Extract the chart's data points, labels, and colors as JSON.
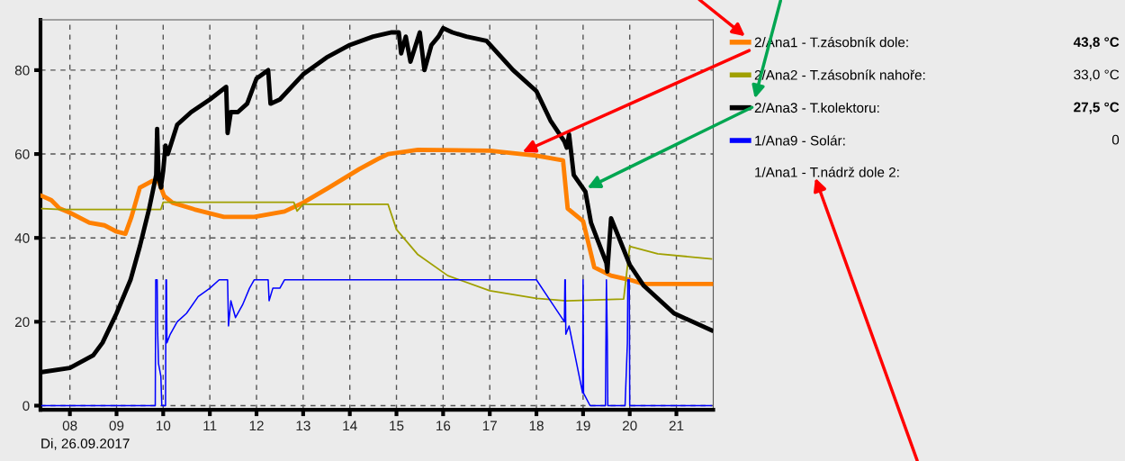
{
  "chart_data": {
    "type": "line",
    "xlabel": "Di, 26.09.2017",
    "xlim": [
      7.37,
      21.79
    ],
    "ylim": [
      -1,
      92
    ],
    "xticks": [
      {
        "value": 8,
        "label": "08"
      },
      {
        "value": 9,
        "label": "09"
      },
      10,
      11,
      12,
      13,
      14,
      15,
      16,
      17,
      18,
      19,
      20,
      21
    ],
    "yticks": [
      0,
      20,
      40,
      60,
      80
    ],
    "grid": true,
    "legend": "right",
    "marker": "none",
    "line_style": "solid",
    "annotations": [
      "1/Ana1 - T.nádrž dole 2:",
      "43,8 °C",
      "33,0 °C",
      "27,5 °C",
      "0"
    ],
    "series": [
      {
        "name": "2/Ana1 - T.zásobník dole:",
        "color": "#ff8000",
        "x": [
          7.4,
          7.6,
          7.78,
          8.0,
          8.42,
          8.74,
          9.0,
          9.19,
          9.32,
          9.5,
          9.77,
          9.9,
          10.02,
          10.2,
          10.67,
          11.3,
          11.95,
          12.6,
          13.0,
          13.55,
          14.2,
          14.6,
          14.82,
          15.46,
          17.0,
          18.0,
          18.57,
          18.67,
          19.0,
          19.24,
          19.6,
          20.0,
          20.3,
          21.75
        ],
        "values": [
          50,
          49,
          47,
          46,
          43.6,
          43,
          41.5,
          41,
          45,
          52,
          53.6,
          53.5,
          50,
          48.4,
          46.8,
          45,
          45,
          46.3,
          48.4,
          52,
          56.4,
          58.8,
          60,
          61,
          60.8,
          59.6,
          58.5,
          47,
          44,
          33,
          31,
          30,
          29,
          29
        ]
      },
      {
        "name": "2/Ana2 - T.zásobník nahoře:",
        "color": "#a0a000",
        "x": [
          7.4,
          7.8,
          9.95,
          10.0,
          12.8,
          12.87,
          13.0,
          14.82,
          15.0,
          15.46,
          16.1,
          17.0,
          18.0,
          18.65,
          19.87,
          20.0,
          20.6,
          21.75
        ],
        "values": [
          47,
          46.8,
          46.8,
          48.5,
          48.5,
          46.4,
          48,
          48,
          42,
          36,
          31,
          27.4,
          25.6,
          25,
          25.4,
          38,
          36.2,
          35
        ]
      },
      {
        "name": "2/Ana3 - T.kolektoru:",
        "color": "#000000",
        "x": [
          7.4,
          8.0,
          8.5,
          8.7,
          9.0,
          9.3,
          9.5,
          9.7,
          9.85,
          9.87,
          9.9,
          9.95,
          10.0,
          10.05,
          10.1,
          10.3,
          10.6,
          11.0,
          11.35,
          11.38,
          11.45,
          11.6,
          11.8,
          12.0,
          12.25,
          12.3,
          12.5,
          13.0,
          13.5,
          14.0,
          14.5,
          14.9,
          15.05,
          15.1,
          15.2,
          15.3,
          15.5,
          15.6,
          15.75,
          15.9,
          16.0,
          16.2,
          16.5,
          16.93,
          17.5,
          18.0,
          18.3,
          18.6,
          18.65,
          18.7,
          18.8,
          19.05,
          19.17,
          19.5,
          19.52,
          19.6,
          20.0,
          20.3,
          20.95,
          21.75
        ],
        "values": [
          8,
          9,
          12,
          15,
          22,
          30,
          38,
          47,
          55,
          66,
          55,
          52,
          56,
          62,
          60,
          67,
          70,
          73,
          76,
          65,
          70,
          70,
          72,
          78,
          80,
          72,
          73,
          79,
          83,
          86,
          88,
          89,
          89,
          84,
          88,
          82,
          89,
          80,
          86,
          88,
          90,
          89,
          88,
          87,
          80,
          75,
          68,
          63,
          61.5,
          64.7,
          55,
          51,
          43.6,
          34,
          32,
          44.7,
          33.6,
          28.6,
          22,
          18
        ]
      },
      {
        "name": "1/Ana9 - Solár:",
        "color": "#0000ff",
        "x": [
          7.4,
          9.83,
          9.84,
          9.87,
          9.88,
          9.9,
          9.95,
          9.97,
          10.05,
          10.06,
          10.07,
          10.08,
          10.15,
          10.3,
          10.5,
          10.75,
          11.0,
          11.2,
          11.38,
          11.4,
          11.45,
          11.55,
          11.7,
          11.85,
          11.95,
          12.25,
          12.27,
          12.35,
          12.5,
          12.6,
          18.0,
          18.3,
          18.6,
          18.61,
          18.62,
          18.63,
          18.7,
          18.99,
          19.0,
          19.01,
          19.15,
          19.48,
          19.49,
          19.5,
          19.52,
          19.53,
          19.9,
          19.95,
          19.96,
          19.99,
          20.0,
          21.75
        ],
        "values": [
          0,
          0,
          30,
          30,
          18,
          10,
          7,
          0,
          0,
          30,
          30,
          15,
          17,
          20,
          22,
          26,
          28,
          30,
          30,
          19,
          25,
          21,
          24,
          28,
          30,
          30,
          25,
          28,
          28,
          30,
          30,
          25,
          20,
          30,
          30,
          17,
          19,
          3,
          30,
          3,
          0,
          0,
          15,
          30,
          15,
          0,
          0,
          15,
          30,
          30,
          0,
          0
        ]
      }
    ]
  }
}
